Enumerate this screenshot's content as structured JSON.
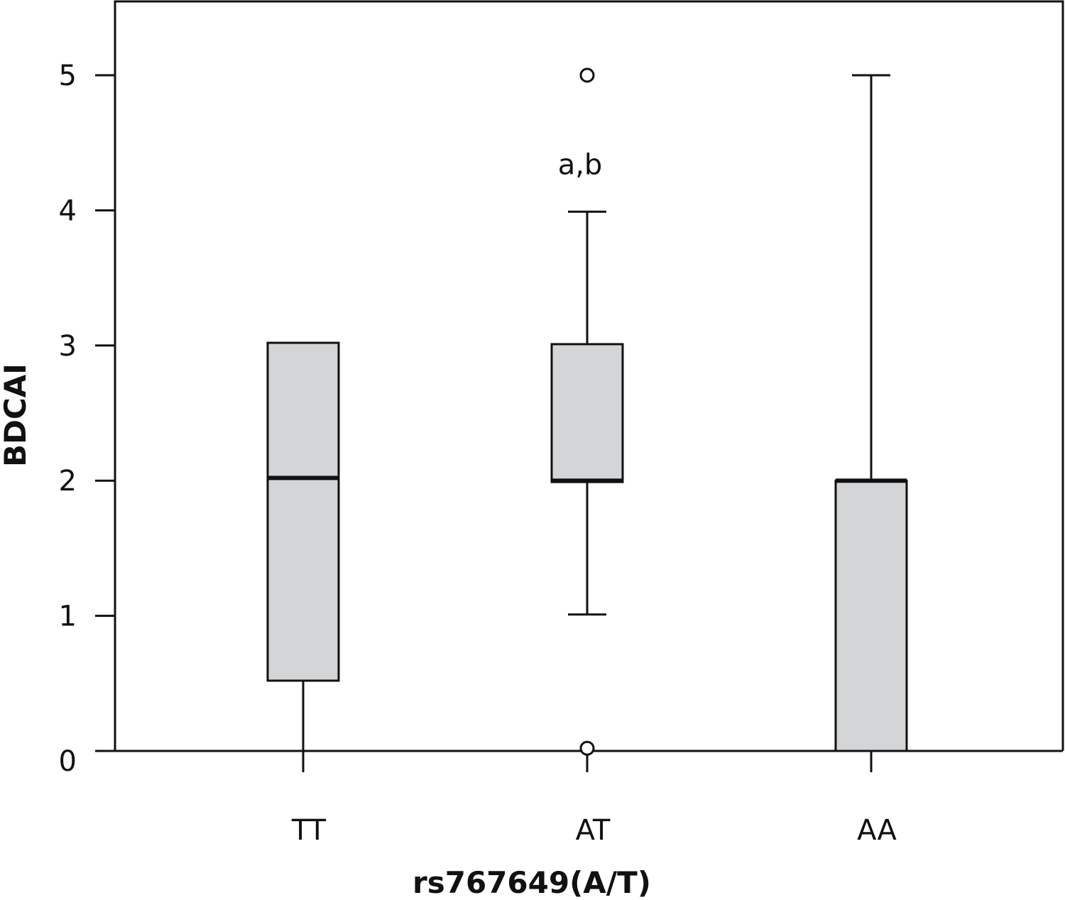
{
  "chart_data": {
    "type": "box",
    "title": "",
    "xlabel": "rs767649(A/T)",
    "ylabel": "BDCAI",
    "ylim": [
      -0.1,
      5.55
    ],
    "yticks": [
      0,
      1,
      2,
      3,
      4,
      5
    ],
    "ytick_labels": [
      "0",
      "1",
      "2",
      "3",
      "4",
      "5"
    ],
    "grid": false,
    "legend": "none",
    "colors": {
      "box_fill": "#d4d5d7",
      "stroke": "#111111"
    },
    "categories": [
      "TT",
      "AT",
      "AA"
    ],
    "boxes": [
      {
        "category": "TT",
        "whisker_low": 0,
        "q1": 0.52,
        "median": 2.02,
        "q3": 3.02,
        "whisker_high": 3.02,
        "outliers": []
      },
      {
        "category": "AT",
        "whisker_low": 1.01,
        "q1": 1.99,
        "median": 2.0,
        "q3": 3.01,
        "whisker_high": 3.99,
        "outliers": [
          5.0,
          0.02
        ]
      },
      {
        "category": "AA",
        "whisker_low": 0,
        "q1": 0,
        "median": 2.0,
        "q3": 2.0,
        "whisker_high": 5.0,
        "outliers": []
      }
    ],
    "annotations": [
      {
        "category": "AT",
        "text": "a,b",
        "y": 4.32
      }
    ]
  }
}
